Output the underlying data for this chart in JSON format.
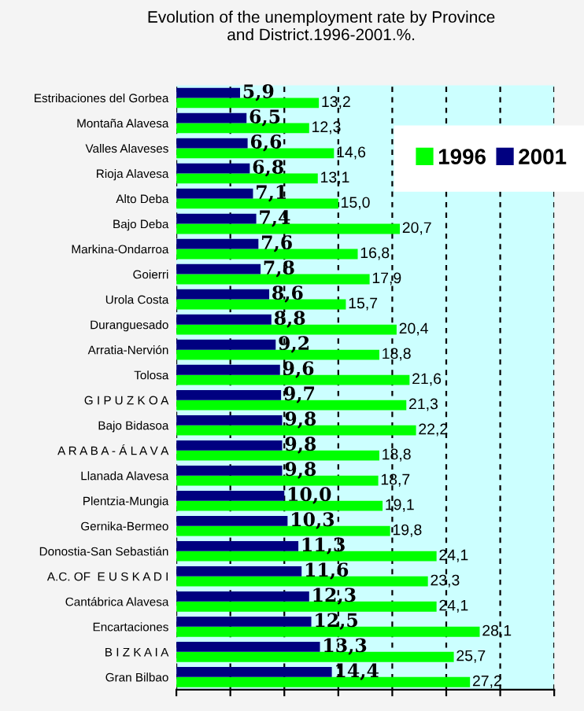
{
  "chart_data": {
    "type": "bar",
    "orientation": "horizontal",
    "title": "Evolution of the unemployment rate by Province\nand District.1996-2001.%.",
    "categories": [
      "Estribaciones del Gorbea",
      "Montaña Alavesa",
      "Valles Alaveses",
      "Rioja Alavesa",
      "Alto Deba",
      "Bajo Deba",
      "Markina-Ondarroa",
      "Goierri",
      "Urola Costa",
      "Duranguesado",
      "Arratia-Nervión",
      "Tolosa",
      "G I P U Z K O A",
      "Bajo Bidasoa",
      "A R A B A - Á L A V A",
      "Llanada Alavesa",
      "Plentzia-Mungia",
      "Gernika-Bermeo",
      "Donostia-San Sebastián",
      "A.C. OF  E U S K A D I",
      "Cantábrica Alavesa",
      "Encartaciones",
      "B I Z K A I A",
      "Gran Bilbao"
    ],
    "series": [
      {
        "name": "1996",
        "color": "#00ff00",
        "values": [
          13.2,
          12.3,
          14.6,
          13.1,
          15.0,
          20.7,
          16.8,
          17.9,
          15.7,
          20.4,
          18.8,
          21.6,
          21.3,
          22.2,
          18.8,
          18.7,
          19.1,
          19.8,
          24.1,
          23.3,
          24.1,
          28.1,
          25.7,
          27.2
        ],
        "value_labels": [
          "13,2",
          "12,3",
          "14,6",
          "13,1",
          "15,0",
          "20,7",
          "16,8",
          "17,9",
          "15,7",
          "20,4",
          "18,8",
          "21,6",
          "21,3",
          "22,2",
          "18,8",
          "18,7",
          "19,1",
          "19,8",
          "24,1",
          "23,3",
          "24,1",
          "28,1",
          "25,7",
          "27,2"
        ]
      },
      {
        "name": "2001",
        "color": "#000080",
        "values": [
          5.9,
          6.5,
          6.6,
          6.8,
          7.1,
          7.4,
          7.6,
          7.8,
          8.6,
          8.8,
          9.2,
          9.6,
          9.7,
          9.8,
          9.8,
          9.8,
          10.0,
          10.3,
          11.3,
          11.6,
          12.3,
          12.5,
          13.3,
          14.4
        ],
        "value_labels": [
          "5,9",
          "6,5",
          "6,6",
          "6,8",
          "7,1",
          "7,4",
          "7,6",
          "7,8",
          "8,6",
          "8,8",
          "9,2",
          "9,6",
          "9,7",
          "9,8",
          "9,8",
          "9,8",
          "10,0",
          "10,3",
          "11,3",
          "11,6",
          "12,3",
          "12,5",
          "13,3",
          "14,4"
        ]
      }
    ],
    "xlim": [
      0,
      35
    ],
    "xticks": [
      {
        "value": 0,
        "label": null
      },
      {
        "value": 5,
        "label": null
      },
      {
        "value": 10,
        "label": null
      },
      {
        "value": 15,
        "label": null
      },
      {
        "value": 20,
        "label": null
      },
      {
        "value": 25,
        "label": null
      },
      {
        "value": 30,
        "label": null
      },
      {
        "value": 35,
        "label": null
      }
    ],
    "tick_labels": "y",
    "grid": "x",
    "legend": "top right"
  }
}
